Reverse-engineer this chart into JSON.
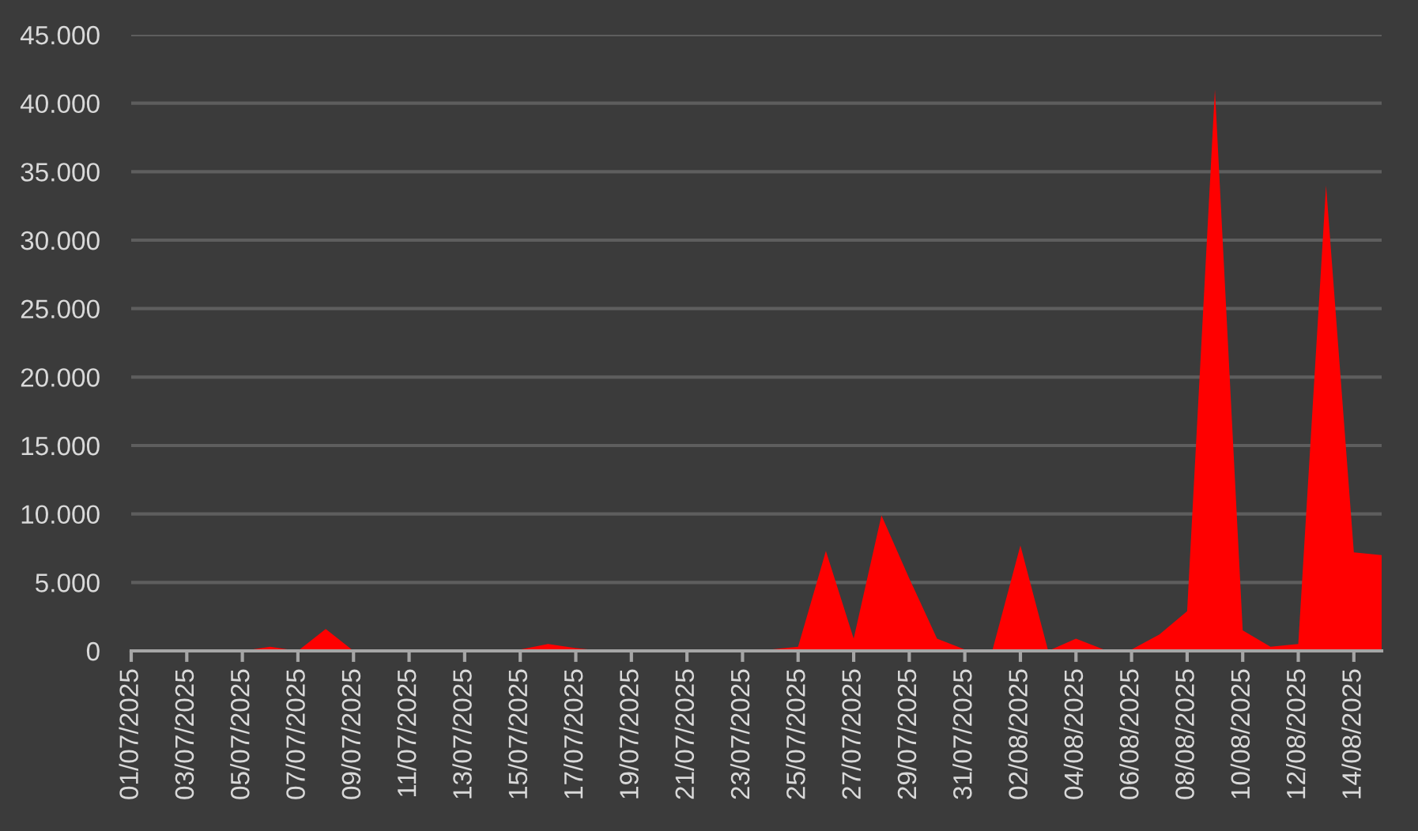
{
  "chart_data": {
    "type": "area",
    "color": "#ff0000",
    "x": [
      "2025-07-01",
      "2025-07-02",
      "2025-07-03",
      "2025-07-04",
      "2025-07-05",
      "2025-07-06",
      "2025-07-07",
      "2025-07-08",
      "2025-07-09",
      "2025-07-10",
      "2025-07-11",
      "2025-07-12",
      "2025-07-13",
      "2025-07-14",
      "2025-07-15",
      "2025-07-16",
      "2025-07-17",
      "2025-07-18",
      "2025-07-19",
      "2025-07-20",
      "2025-07-21",
      "2025-07-22",
      "2025-07-23",
      "2025-07-24",
      "2025-07-25",
      "2025-07-26",
      "2025-07-27",
      "2025-07-28",
      "2025-07-29",
      "2025-07-30",
      "2025-07-31",
      "2025-08-01",
      "2025-08-02",
      "2025-08-03",
      "2025-08-04",
      "2025-08-05",
      "2025-08-06",
      "2025-08-07",
      "2025-08-08",
      "2025-08-09",
      "2025-08-10",
      "2025-08-11",
      "2025-08-12",
      "2025-08-13",
      "2025-08-14",
      "2025-08-15"
    ],
    "values": [
      100,
      0,
      0,
      0,
      0,
      300,
      0,
      1600,
      0,
      100,
      0,
      0,
      0,
      100,
      100,
      500,
      200,
      0,
      0,
      0,
      0,
      0,
      100,
      100,
      300,
      7300,
      900,
      9900,
      5300,
      900,
      100,
      100,
      7700,
      0,
      900,
      100,
      100,
      1200,
      2900,
      41000,
      1500,
      300,
      500,
      34000,
      7200,
      7000
    ],
    "xlim": [
      "2025-07-01",
      "2025-08-15"
    ],
    "xticks": [
      {
        "value": "2025-07-01",
        "label": "01/07/2025"
      },
      {
        "value": "2025-07-03",
        "label": "03/07/2025"
      },
      {
        "value": "2025-07-05",
        "label": "05/07/2025"
      },
      {
        "value": "2025-07-07",
        "label": "07/07/2025"
      },
      {
        "value": "2025-07-09",
        "label": "09/07/2025"
      },
      {
        "value": "2025-07-11",
        "label": "11/07/2025"
      },
      {
        "value": "2025-07-13",
        "label": "13/07/2025"
      },
      {
        "value": "2025-07-15",
        "label": "15/07/2025"
      },
      {
        "value": "2025-07-17",
        "label": "17/07/2025"
      },
      {
        "value": "2025-07-19",
        "label": "19/07/2025"
      },
      {
        "value": "2025-07-21",
        "label": "21/07/2025"
      },
      {
        "value": "2025-07-23",
        "label": "23/07/2025"
      },
      {
        "value": "2025-07-25",
        "label": "25/07/2025"
      },
      {
        "value": "2025-07-27",
        "label": "27/07/2025"
      },
      {
        "value": "2025-07-29",
        "label": "29/07/2025"
      },
      {
        "value": "2025-07-31",
        "label": "31/07/2025"
      },
      {
        "value": "2025-08-02",
        "label": "02/08/2025"
      },
      {
        "value": "2025-08-04",
        "label": "04/08/2025"
      },
      {
        "value": "2025-08-06",
        "label": "06/08/2025"
      },
      {
        "value": "2025-08-08",
        "label": "08/08/2025"
      },
      {
        "value": "2025-08-10",
        "label": "10/08/2025"
      },
      {
        "value": "2025-08-12",
        "label": "12/08/2025"
      },
      {
        "value": "2025-08-14",
        "label": "14/08/2025"
      }
    ],
    "ylim": [
      0,
      45000
    ],
    "yticks": [
      0,
      {
        "value": 5000,
        "label": "5.000"
      },
      {
        "value": 10000,
        "label": "10.000"
      },
      {
        "value": 15000,
        "label": "15.000"
      },
      {
        "value": 20000,
        "label": "20.000"
      },
      {
        "value": 25000,
        "label": "25.000"
      },
      {
        "value": 30000,
        "label": "30.000"
      },
      {
        "value": 35000,
        "label": "35.000"
      },
      {
        "value": 40000,
        "label": "40.000"
      },
      {
        "value": 45000,
        "label": "45.000"
      }
    ],
    "grid": "y"
  }
}
